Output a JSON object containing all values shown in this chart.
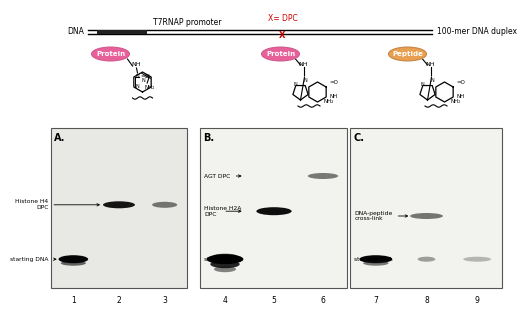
{
  "title_top": "T7RNAP promoter",
  "dna_label": "DNA",
  "dpc_label": "X= DPC",
  "duplex_label": "100-mer DNA duplex",
  "dpc_color": "#cc0000",
  "protein_color": "#e8609a",
  "peptide_color": "#e8a050",
  "protein_label": "Protein",
  "peptide_label": "Peptide",
  "panel_labels": [
    "A.",
    "B.",
    "C."
  ],
  "lane_labels": [
    "1",
    "2",
    "3",
    "4",
    "5",
    "6",
    "7",
    "8",
    "9"
  ],
  "gel_bg_A": "#e8e8e4",
  "gel_bg_BC": "#f2f2ee",
  "band_dark": "#0a0a0a",
  "band_mid": "#555555",
  "band_light": "#999999"
}
